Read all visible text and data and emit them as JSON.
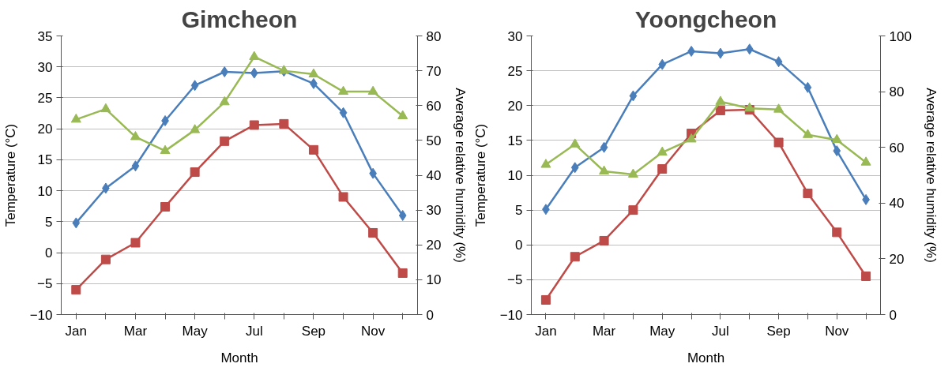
{
  "chart_data": [
    {
      "type": "line",
      "title": "Gimcheon",
      "xlabel": "Month",
      "ylabel": "Temperature (°C)",
      "y2label": "Average relative humidity (%)",
      "categories": [
        "Jan",
        null,
        "Mar",
        null,
        "May",
        null,
        "Jul",
        null,
        "Sep",
        null,
        "Nov",
        null
      ],
      "ylim": [
        -10,
        35
      ],
      "yticks": [
        -10,
        -5,
        0,
        5,
        10,
        15,
        20,
        25,
        30,
        35
      ],
      "y2lim": [
        0,
        80
      ],
      "y2ticks": [
        0,
        10,
        20,
        30,
        40,
        50,
        60,
        70,
        80
      ],
      "grid": "y",
      "series": [
        {
          "color": "#4a7ebb",
          "marker": "diamond",
          "values": [
            4.8,
            10.4,
            14,
            21.3,
            27,
            29.2,
            29,
            29.3,
            27.3,
            22.6,
            12.8,
            6
          ]
        },
        {
          "color": "#be4b48",
          "marker": "square",
          "values": [
            -6,
            -1.1,
            1.6,
            7.4,
            13,
            18,
            20.6,
            20.8,
            16.6,
            9,
            3.2,
            -3.3
          ]
        },
        {
          "color": "#98b954",
          "marker": "triangle",
          "axis": "y2",
          "values": [
            56,
            59,
            51,
            47,
            53,
            61,
            74,
            70,
            69,
            64,
            64,
            57
          ]
        }
      ]
    },
    {
      "type": "line",
      "title": "Yoongcheon",
      "xlabel": "Month",
      "ylabel": "Temperature (°C)",
      "y2label": "Average relative humidity (%)",
      "categories": [
        "Jan",
        null,
        "Mar",
        null,
        "May",
        null,
        "Jul",
        null,
        "Sep",
        null,
        "Nov",
        null
      ],
      "ylim": [
        -10,
        30
      ],
      "yticks": [
        -10,
        -5,
        0,
        5,
        10,
        15,
        20,
        25,
        30
      ],
      "y2lim": [
        0,
        100
      ],
      "y2ticks": [
        0,
        20,
        40,
        60,
        80,
        100
      ],
      "grid": "y",
      "series": [
        {
          "color": "#4a7ebb",
          "marker": "diamond",
          "values": [
            5.1,
            11.1,
            14,
            21.4,
            25.9,
            27.8,
            27.5,
            28.1,
            26.3,
            22.6,
            13.5,
            6.5
          ]
        },
        {
          "color": "#be4b48",
          "marker": "square",
          "values": [
            -7.9,
            -1.7,
            0.6,
            5,
            10.9,
            16,
            19.3,
            19.4,
            14.7,
            7.4,
            1.8,
            -4.5
          ]
        },
        {
          "color": "#98b954",
          "marker": "triangle",
          "axis": "y2",
          "values": [
            53.8,
            61.1,
            51.4,
            50.3,
            58.2,
            62.9,
            76.4,
            74,
            73.6,
            64.5,
            62.7,
            54.6
          ]
        }
      ]
    }
  ]
}
